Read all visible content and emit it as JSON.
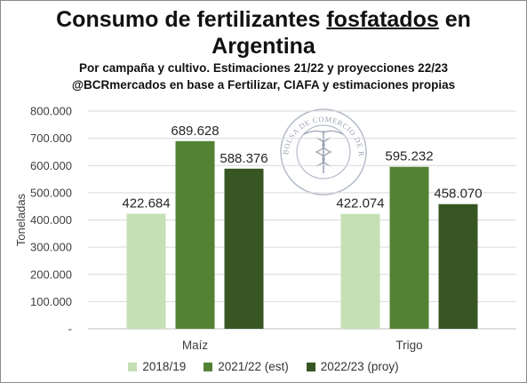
{
  "title": {
    "line1_pre": "Consumo de fertilizantes ",
    "line1_underlined": "fosfatados",
    "line1_post": " en",
    "line2": "Argentina"
  },
  "subtitle_lines": [
    "Por campaña y cultivo. Estimaciones 21/22 y proyecciones 22/23",
    "@BCRmercados en base a Fertilizar, CIAFA y estimaciones propias"
  ],
  "watermark": {
    "text": "BOLSA DE COMERCIO DE ROSARIO",
    "icon": "caduceus-seal-icon"
  },
  "chart_data": {
    "type": "bar",
    "categories": [
      "Maíz",
      "Trigo"
    ],
    "series": [
      {
        "name": "2018/19",
        "color": "#c5e0b4",
        "values": [
          422684,
          422074
        ],
        "labels": [
          "422.684",
          "422.074"
        ]
      },
      {
        "name": "2021/22 (est)",
        "color": "#548235",
        "values": [
          689628,
          595232
        ],
        "labels": [
          "689.628",
          "595.232"
        ]
      },
      {
        "name": "2022/23 (proy)",
        "color": "#375623",
        "values": [
          588376,
          458070
        ],
        "labels": [
          "588.376",
          "458.070"
        ]
      }
    ],
    "ylabel": "Toneladas",
    "ylim": [
      0,
      800000
    ],
    "yticks": [
      0,
      100000,
      200000,
      300000,
      400000,
      500000,
      600000,
      700000,
      800000
    ],
    "ytick_labels": [
      "-",
      "100.000",
      "200.000",
      "300.000",
      "400.000",
      "500.000",
      "600.000",
      "700.000",
      "800.000"
    ],
    "grid": true,
    "legend_position": "bottom"
  }
}
